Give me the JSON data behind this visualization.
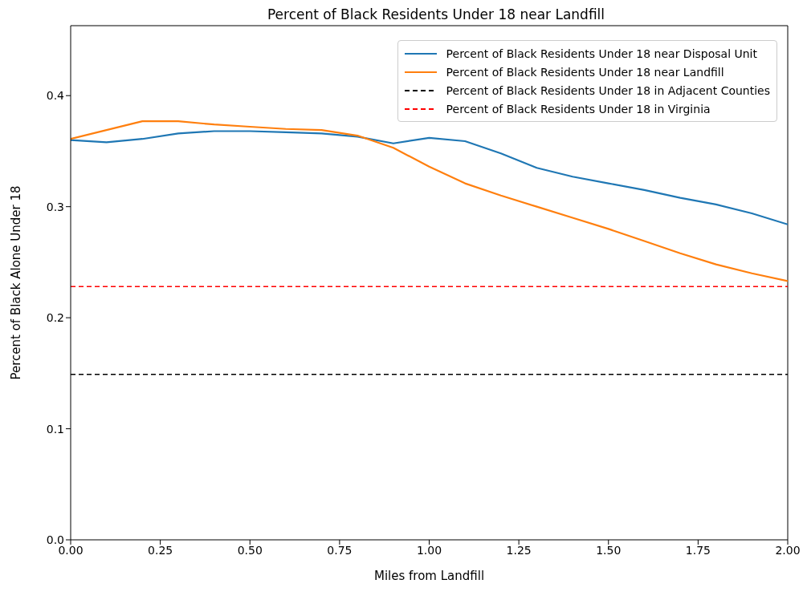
{
  "chart_data": {
    "type": "line",
    "title": "Percent of Black Residents Under 18 near Landfill",
    "xlabel": "Miles from Landfill",
    "ylabel": "Percent of Black Alone Under 18",
    "x": [
      0,
      0.1,
      0.2,
      0.3,
      0.4,
      0.5,
      0.6,
      0.7,
      0.8,
      0.9,
      1.0,
      1.1,
      1.2,
      1.3,
      1.4,
      1.5,
      1.6,
      1.7,
      1.8,
      1.9,
      2.0
    ],
    "series": [
      {
        "name": "Percent of Black Residents Under 18 near Disposal Unit",
        "color": "#1f77b4",
        "values": [
          0.36,
          0.358,
          0.361,
          0.366,
          0.368,
          0.368,
          0.367,
          0.366,
          0.363,
          0.357,
          0.362,
          0.359,
          0.348,
          0.335,
          0.327,
          0.321,
          0.315,
          0.308,
          0.302,
          0.294,
          0.284
        ]
      },
      {
        "name": "Percent of Black Residents Under 18 near Landfill",
        "color": "#ff7f0e",
        "values": [
          0.361,
          0.369,
          0.377,
          0.377,
          0.374,
          0.372,
          0.37,
          0.369,
          0.364,
          0.353,
          0.336,
          0.321,
          0.31,
          0.3,
          0.29,
          0.28,
          0.269,
          0.258,
          0.248,
          0.24,
          0.233
        ]
      }
    ],
    "ref_lines": [
      {
        "axis": "y",
        "value": 0.149,
        "label": "Percent of Black Residents Under 18 in Adjacent Counties",
        "color": "#000000",
        "line_style": "dashed"
      },
      {
        "axis": "y",
        "value": 0.228,
        "label": "Percent of Black Residents Under 18 in Virginia",
        "color": "#ff0000",
        "line_style": "dashed"
      }
    ],
    "xlim": [
      0,
      2.0
    ],
    "xticks": [
      {
        "value": 0,
        "label": "0.00"
      },
      {
        "value": 0.25,
        "label": "0.25"
      },
      {
        "value": 0.5,
        "label": "0.50"
      },
      {
        "value": 0.75,
        "label": "0.75"
      },
      {
        "value": 1.0,
        "label": "1.00"
      },
      {
        "value": 1.25,
        "label": "1.25"
      },
      {
        "value": 1.5,
        "label": "1.50"
      },
      {
        "value": 1.75,
        "label": "1.75"
      },
      {
        "value": 2.0,
        "label": "2.00"
      }
    ],
    "ylim": [
      0,
      0.463
    ],
    "yticks": [
      {
        "value": 0,
        "label": "0.0"
      },
      {
        "value": 0.1,
        "label": "0.1"
      },
      {
        "value": 0.2,
        "label": "0.2"
      },
      {
        "value": 0.3,
        "label": "0.3"
      },
      {
        "value": 0.4,
        "label": "0.4"
      }
    ],
    "legend": "top right",
    "grid": false,
    "line_style": "solid",
    "marker": "none"
  }
}
